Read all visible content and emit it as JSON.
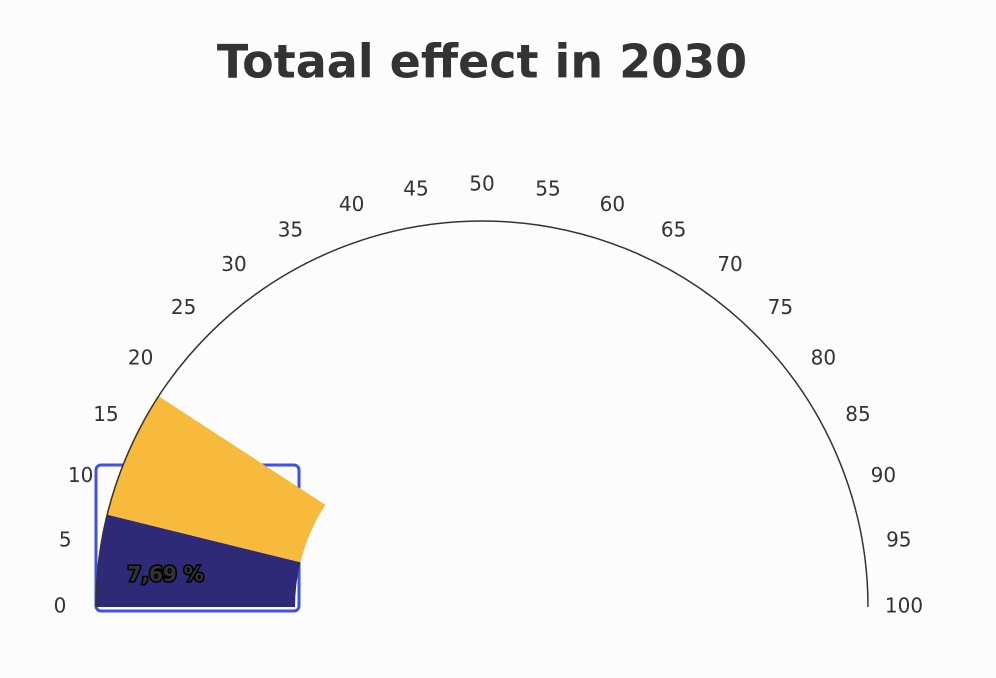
{
  "chart_data": {
    "type": "gauge",
    "title": "Totaal effect in 2030",
    "values": [
      7.69,
      10.7
    ],
    "colors": [
      "#2e2a78",
      "#f8ba3c"
    ],
    "value_labels": [
      "7,69 %",
      null
    ],
    "ylim": [
      0,
      100
    ],
    "yticks": [
      0,
      5,
      10,
      15,
      20,
      25,
      30,
      35,
      40,
      45,
      50,
      55,
      60,
      65,
      70,
      75,
      80,
      85,
      90,
      95,
      100
    ]
  }
}
